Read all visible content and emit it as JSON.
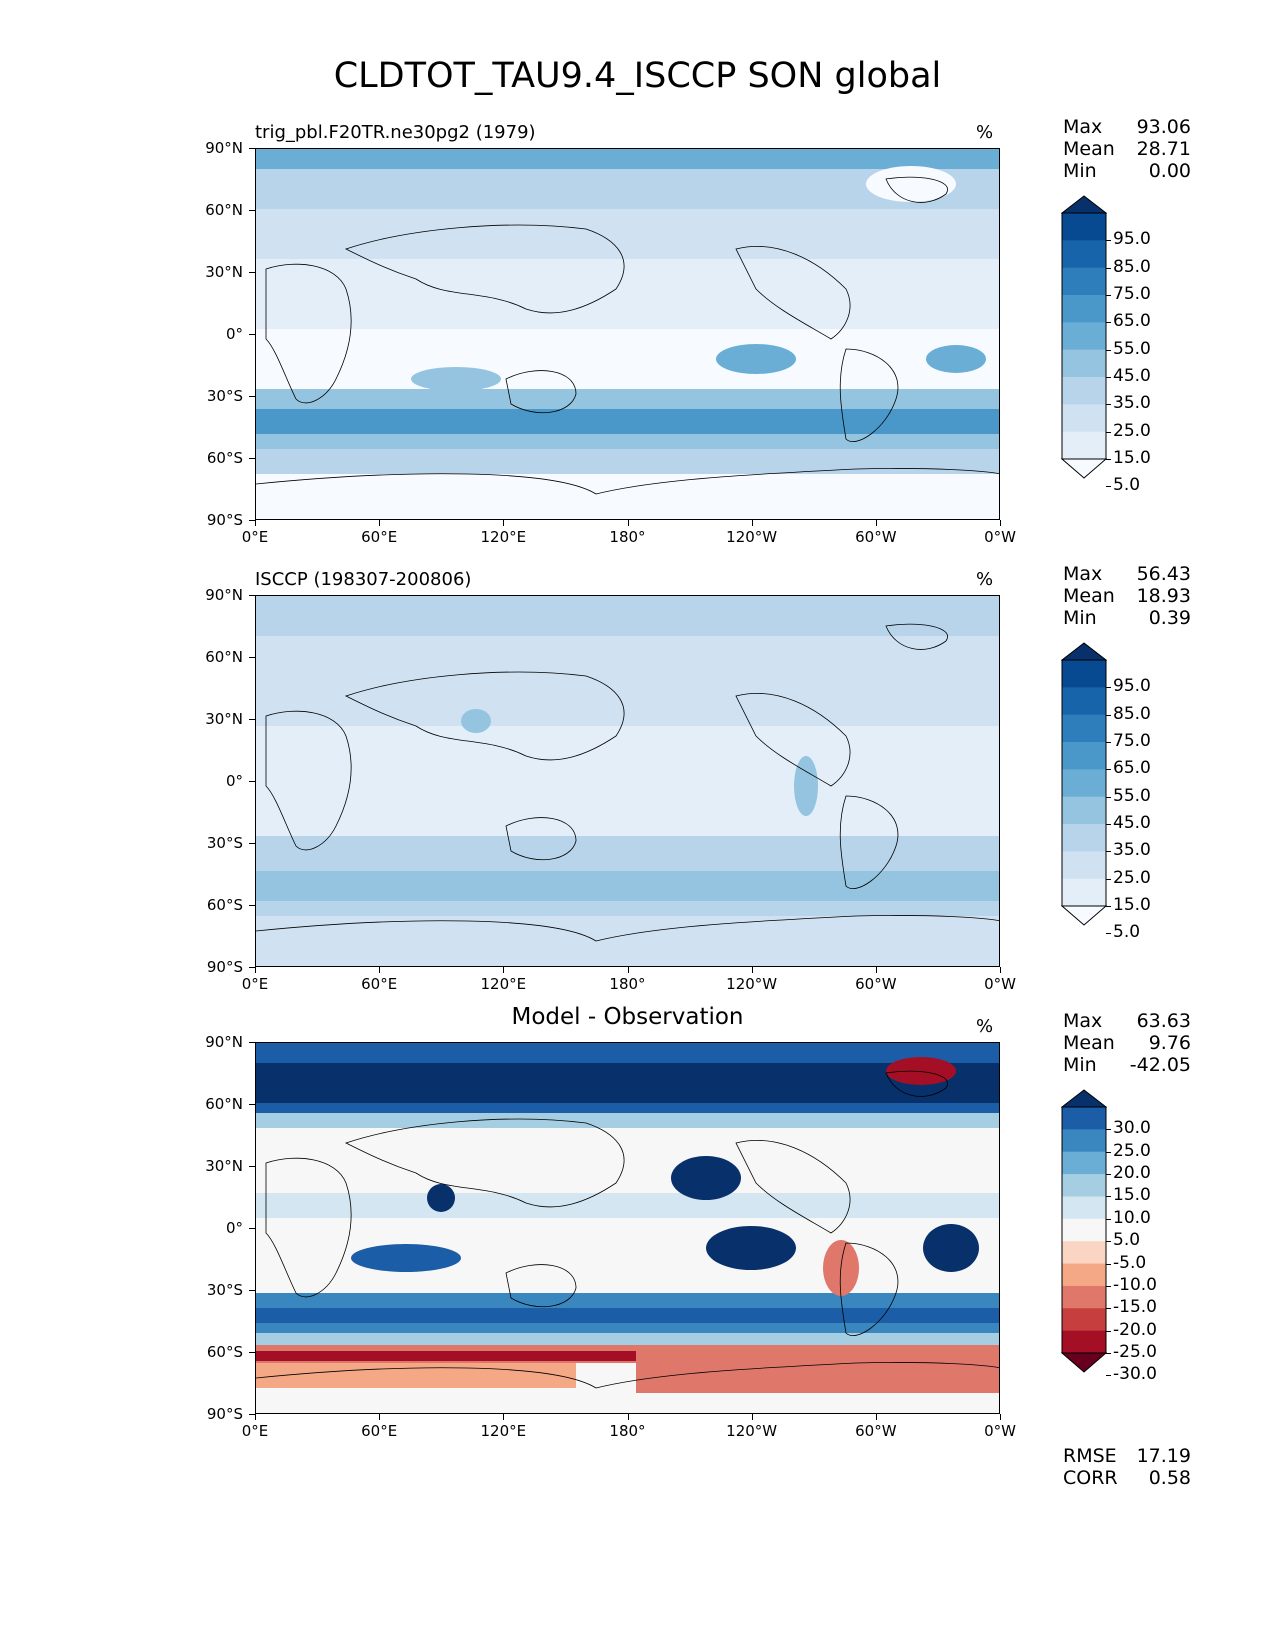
{
  "title": "CLDTOT_TAU9.4_ISCCP SON global",
  "units": "%",
  "lat_labels": [
    "90°N",
    "60°N",
    "30°N",
    "0°",
    "30°S",
    "60°S",
    "90°S"
  ],
  "lon_labels": [
    "0°E",
    "60°E",
    "120°E",
    "180°",
    "120°W",
    "60°W",
    "0°W"
  ],
  "panels": [
    {
      "title": "trig_pbl.F20TR.ne30pg2 (1979)",
      "center_title": "",
      "stats": [
        {
          "k": "Max",
          "v": "93.06"
        },
        {
          "k": "Mean",
          "v": "28.71"
        },
        {
          "k": "Min",
          "v": "0.00"
        }
      ],
      "colorbar": {
        "labels": [
          "95.0",
          "85.0",
          "75.0",
          "65.0",
          "55.0",
          "45.0",
          "35.0",
          "25.0",
          "15.0",
          "5.0"
        ],
        "colors": [
          "#f7fbff",
          "#e3eef9",
          "#d0e1f2",
          "#b7d4ea",
          "#94c4df",
          "#6aaed6",
          "#4a98c9",
          "#2e7ebc",
          "#1764ab",
          "#084a91",
          "#08306b"
        ]
      }
    },
    {
      "title": "ISCCP (198307-200806)",
      "center_title": "",
      "stats": [
        {
          "k": "Max",
          "v": "56.43"
        },
        {
          "k": "Mean",
          "v": "18.93"
        },
        {
          "k": "Min",
          "v": "0.39"
        }
      ],
      "colorbar": {
        "labels": [
          "95.0",
          "85.0",
          "75.0",
          "65.0",
          "55.0",
          "45.0",
          "35.0",
          "25.0",
          "15.0",
          "5.0"
        ],
        "colors": [
          "#f7fbff",
          "#e3eef9",
          "#d0e1f2",
          "#b7d4ea",
          "#94c4df",
          "#6aaed6",
          "#4a98c9",
          "#2e7ebc",
          "#1764ab",
          "#084a91",
          "#08306b"
        ]
      }
    },
    {
      "title": "",
      "center_title": "Model - Observation",
      "stats": [
        {
          "k": "Max",
          "v": "63.63"
        },
        {
          "k": "Mean",
          "v": "9.76"
        },
        {
          "k": "Min",
          "v": "-42.05"
        }
      ],
      "colorbar": {
        "labels": [
          "30.0",
          "25.0",
          "20.0",
          "15.0",
          "10.0",
          "5.0",
          "-5.0",
          "-10.0",
          "-15.0",
          "-20.0",
          "-25.0",
          "-30.0"
        ],
        "colors": [
          "#67001f",
          "#a50f26",
          "#c73e3e",
          "#e0776b",
          "#f4a886",
          "#fbd5c3",
          "#f7f7f7",
          "#d4e6f1",
          "#a6cee3",
          "#6aaed6",
          "#3a87c0",
          "#1b5da6",
          "#08306b"
        ]
      }
    }
  ],
  "metrics": [
    {
      "k": "RMSE",
      "v": "17.19"
    },
    {
      "k": "CORR",
      "v": "0.58"
    }
  ]
}
